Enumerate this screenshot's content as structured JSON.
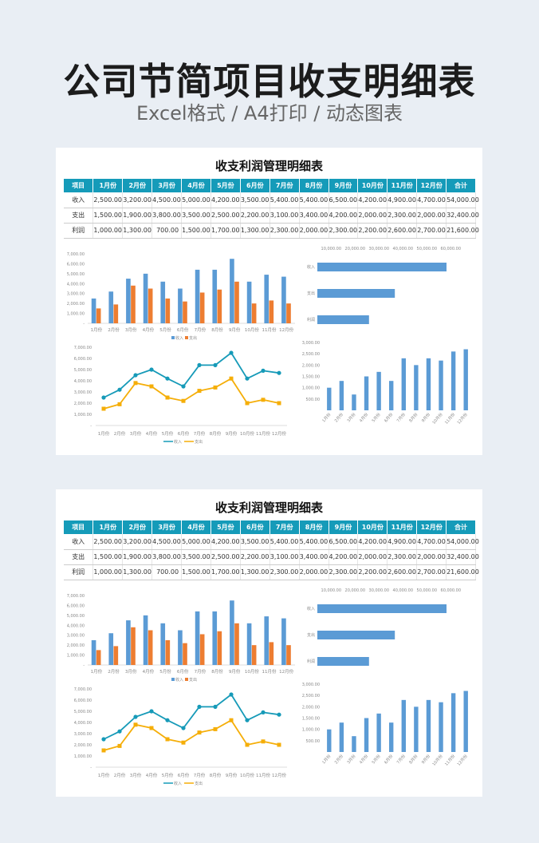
{
  "header": {
    "title": "公司节简项目收支明细表",
    "subtitle": "Excel格式 / A4打印 / 动态图表"
  },
  "sheet": {
    "title": "收支利润管理明细表",
    "columns": [
      "项目",
      "1月份",
      "2月份",
      "3月份",
      "4月份",
      "5月份",
      "6月份",
      "7月份",
      "8月份",
      "9月份",
      "10月份",
      "11月份",
      "12月份",
      "合计"
    ],
    "rows": [
      {
        "label": "收入",
        "values": [
          "2,500.00",
          "3,200.00",
          "4,500.00",
          "5,000.00",
          "4,200.00",
          "3,500.00",
          "5,400.00",
          "5,400.00",
          "6,500.00",
          "4,200.00",
          "4,900.00",
          "4,700.00",
          "54,000.00"
        ]
      },
      {
        "label": "支出",
        "values": [
          "1,500.00",
          "1,900.00",
          "3,800.00",
          "3,500.00",
          "2,500.00",
          "2,200.00",
          "3,100.00",
          "3,400.00",
          "4,200.00",
          "2,000.00",
          "2,300.00",
          "2,000.00",
          "32,400.00"
        ]
      },
      {
        "label": "利润",
        "values": [
          "1,000.00",
          "1,300.00",
          "700.00",
          "1,500.00",
          "1,700.00",
          "1,300.00",
          "2,300.00",
          "2,000.00",
          "2,300.00",
          "2,200.00",
          "2,600.00",
          "2,700.00",
          "21,600.00"
        ]
      }
    ]
  },
  "chart_data": [
    {
      "type": "bar",
      "id": "col",
      "categories": [
        "1月份",
        "2月份",
        "3月份",
        "4月份",
        "5月份",
        "6月份",
        "7月份",
        "8月份",
        "9月份",
        "10月份",
        "11月份",
        "12月份"
      ],
      "series": [
        {
          "name": "收入",
          "color": "#5b9bd5",
          "values": [
            2500,
            3200,
            4500,
            5000,
            4200,
            3500,
            5400,
            5400,
            6500,
            4200,
            4900,
            4700
          ]
        },
        {
          "name": "支出",
          "color": "#ed7d31",
          "values": [
            1500,
            1900,
            3800,
            3500,
            2500,
            2200,
            3100,
            3400,
            4200,
            2000,
            2300,
            2000
          ]
        }
      ],
      "ylim": [
        0,
        7000
      ],
      "yticks": [
        "-",
        "1,000.00",
        "2,000.00",
        "3,000.00",
        "4,000.00",
        "5,000.00",
        "6,000.00",
        "7,000.00"
      ],
      "legend": "bottom"
    },
    {
      "type": "bar",
      "id": "hbar",
      "orientation": "horizontal",
      "categories": [
        "收入",
        "支出",
        "利润"
      ],
      "values": [
        54000,
        32400,
        21600
      ],
      "color": "#5b9bd5",
      "xlim": [
        0,
        60000
      ],
      "xticks": [
        "10,000.00",
        "20,000.00",
        "30,000.00",
        "40,000.00",
        "50,000.00",
        "60,000.00"
      ]
    },
    {
      "type": "line",
      "id": "line",
      "categories": [
        "1月份",
        "2月份",
        "3月份",
        "4月份",
        "5月份",
        "6月份",
        "7月份",
        "8月份",
        "9月份",
        "10月份",
        "11月份",
        "12月份"
      ],
      "series": [
        {
          "name": "收入",
          "color": "#169ab8",
          "values": [
            2500,
            3200,
            4500,
            5000,
            4200,
            3500,
            5400,
            5400,
            6500,
            4200,
            4900,
            4700
          ]
        },
        {
          "name": "支出",
          "color": "#f5ae08",
          "values": [
            1500,
            1900,
            3800,
            3500,
            2500,
            2200,
            3100,
            3400,
            4200,
            2000,
            2300,
            2000
          ]
        }
      ],
      "ylim": [
        0,
        7000
      ],
      "yticks": [
        "-",
        "1,000.00",
        "2,000.00",
        "3,000.00",
        "4,000.00",
        "5,000.00",
        "6,000.00",
        "7,000.00"
      ],
      "legend": "bottom"
    },
    {
      "type": "bar",
      "id": "profit",
      "categories": [
        "1月份",
        "2月份",
        "3月份",
        "4月份",
        "5月份",
        "6月份",
        "7月份",
        "8月份",
        "9月份",
        "10月份",
        "11月份",
        "12月份"
      ],
      "values": [
        1000,
        1300,
        700,
        1500,
        1700,
        1300,
        2300,
        2000,
        2300,
        2200,
        2600,
        2700
      ],
      "color": "#5b9bd5",
      "ylim": [
        0,
        3000
      ],
      "yticks": [
        "",
        "500.00",
        "1,000.00",
        "1,500.00",
        "2,000.00",
        "2,500.00",
        "3,000.00"
      ]
    }
  ]
}
